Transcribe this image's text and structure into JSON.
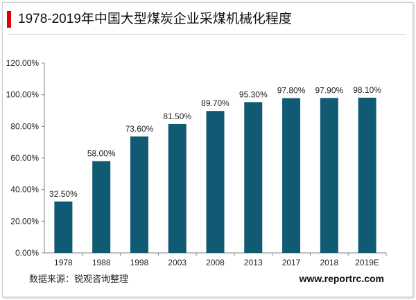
{
  "colors": {
    "accent": "#e00000",
    "bar": "#105a73",
    "axis": "#7f7f7f"
  },
  "title": "1978-2019年中国大型煤炭企业采煤机械化程度",
  "source": "数据来源：锐观咨询整理",
  "website": "www.reportrc.com",
  "chart_data": {
    "type": "bar",
    "categories": [
      "1978",
      "1988",
      "1998",
      "2003",
      "2008",
      "2013",
      "2017",
      "2018",
      "2019E"
    ],
    "values": [
      32.5,
      58.0,
      73.6,
      81.5,
      89.7,
      95.3,
      97.8,
      97.9,
      98.1
    ],
    "data_labels": [
      "32.50%",
      "58.00%",
      "73.60%",
      "81.50%",
      "89.70%",
      "95.30%",
      "97.80%",
      "97.90%",
      "98.10%"
    ],
    "y_ticks": [
      0,
      20,
      40,
      60,
      80,
      100,
      120
    ],
    "y_tick_labels": [
      "0.00%",
      "20.00%",
      "40.00%",
      "60.00%",
      "80.00%",
      "100.00%",
      "120.00%"
    ],
    "ylim": [
      0,
      120
    ],
    "grid": false,
    "legend": "none"
  }
}
